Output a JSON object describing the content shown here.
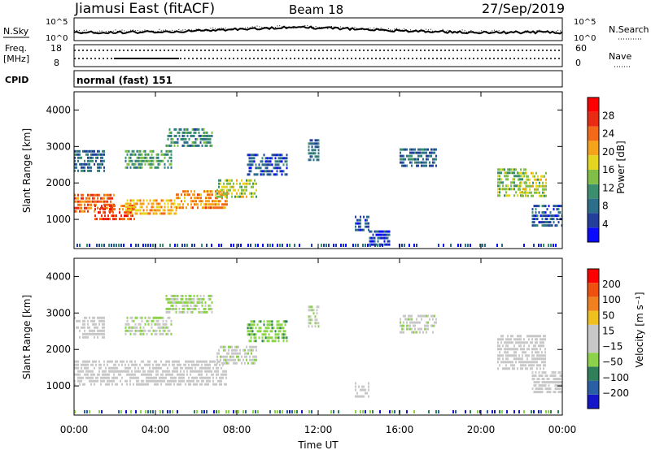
{
  "header": {
    "station": "Jiamusi East (fitACF)",
    "beam": "Beam 18",
    "date": "27/Sep/2019"
  },
  "left_labels": {
    "nsky": "N.Sky",
    "freq_line1": "Freq.",
    "freq_line2": "[MHz]",
    "cpid": "CPID"
  },
  "right_labels": {
    "nsearch": "N.Search",
    "nave": "Nave"
  },
  "noise_panel": {
    "ytick_top": "10^5",
    "ytick_bottom": "10^0",
    "right_tick_top": "10^5",
    "right_tick_bottom": "10^0"
  },
  "freq_panel": {
    "ytick_top": "18",
    "ytick_bottom": "8",
    "right_tick_top": "60",
    "right_tick_bottom": "0"
  },
  "cpid_text": "normal (fast) 151",
  "colors": {
    "power_scale": [
      "#0a0aff",
      "#233f9c",
      "#2d6e8a",
      "#3b8f6e",
      "#7fbf49",
      "#e6d51e",
      "#f5a31a",
      "#f26a17",
      "#ea2b14",
      "#ff0000"
    ],
    "velocity_scale": [
      "#1414c8",
      "#2a5fa6",
      "#2f7f5a",
      "#8cd24a",
      "#c8c8c8",
      "#c8c8c8",
      "#f0c020",
      "#f08020",
      "#ee5010",
      "#ff0000"
    ]
  },
  "chart_data": [
    {
      "type": "heatmap",
      "name": "power",
      "ylabel": "Slant Range [km]",
      "ylim": [
        200,
        4500
      ],
      "yticks": [
        "1000",
        "2000",
        "3000",
        "4000"
      ],
      "xlim_hours": [
        0,
        24
      ],
      "colorbar_label": "Power [dB]",
      "colorbar_ticks": [
        "4",
        "8",
        "12",
        "16",
        "20",
        "24",
        "28"
      ],
      "colorbar_range": [
        0,
        32
      ],
      "echo_regions": [
        {
          "t": [
            0.0,
            2.0
          ],
          "range_km": [
            1200,
            1700
          ],
          "value": 24
        },
        {
          "t": [
            1.0,
            3.0
          ],
          "range_km": [
            1000,
            1400
          ],
          "value": 26
        },
        {
          "t": [
            2.5,
            5.0
          ],
          "range_km": [
            1150,
            1550
          ],
          "value": 20
        },
        {
          "t": [
            5.0,
            7.5
          ],
          "range_km": [
            1350,
            1800
          ],
          "value": 22
        },
        {
          "t": [
            7.0,
            9.0
          ],
          "range_km": [
            1600,
            2100
          ],
          "value": 16
        },
        {
          "t": [
            2.5,
            4.8
          ],
          "range_km": [
            2450,
            2900
          ],
          "value": 12
        },
        {
          "t": [
            4.5,
            6.8
          ],
          "range_km": [
            3000,
            3500
          ],
          "value": 10
        },
        {
          "t": [
            0.0,
            1.5
          ],
          "range_km": [
            2300,
            2900
          ],
          "value": 8
        },
        {
          "t": [
            8.5,
            10.5
          ],
          "range_km": [
            2200,
            2800
          ],
          "value": 6
        },
        {
          "t": [
            11.5,
            12.0
          ],
          "range_km": [
            2600,
            3200
          ],
          "value": 8
        },
        {
          "t": [
            13.8,
            14.5
          ],
          "range_km": [
            700,
            1100
          ],
          "value": 6
        },
        {
          "t": [
            14.5,
            15.5
          ],
          "range_km": [
            300,
            700
          ],
          "value": 4
        },
        {
          "t": [
            16.0,
            17.8
          ],
          "range_km": [
            2500,
            2950
          ],
          "value": 8
        },
        {
          "t": [
            20.8,
            22.2
          ],
          "range_km": [
            1600,
            2400
          ],
          "value": 14
        },
        {
          "t": [
            21.8,
            23.2
          ],
          "range_km": [
            1600,
            2300
          ],
          "value": 16
        },
        {
          "t": [
            22.5,
            24.0
          ],
          "range_km": [
            800,
            1400
          ],
          "value": 6
        }
      ]
    },
    {
      "type": "heatmap",
      "name": "velocity",
      "ylabel": "Slant Range [km]",
      "ylim": [
        200,
        4500
      ],
      "yticks": [
        "1000",
        "2000",
        "3000",
        "4000"
      ],
      "xlim_hours": [
        0,
        24
      ],
      "xticks": [
        "00:00",
        "04:00",
        "08:00",
        "12:00",
        "16:00",
        "20:00",
        "00:00"
      ],
      "xlabel": "Time UT",
      "colorbar_label": "Velocity [m s⁻¹]",
      "colorbar_ticks": [
        "200",
        "100",
        "50",
        "15",
        "−15",
        "−50",
        "−100",
        "−200"
      ],
      "colorbar_range": [
        -250,
        250
      ],
      "echo_regions": [
        {
          "t": [
            0.0,
            7.5
          ],
          "range_km": [
            1000,
            1700
          ],
          "value": 0
        },
        {
          "t": [
            7.0,
            9.0
          ],
          "range_km": [
            1600,
            2100
          ],
          "value": -30
        },
        {
          "t": [
            2.5,
            4.8
          ],
          "range_km": [
            2450,
            2900
          ],
          "value": -40
        },
        {
          "t": [
            4.5,
            6.8
          ],
          "range_km": [
            3000,
            3500
          ],
          "value": -60
        },
        {
          "t": [
            0.0,
            1.5
          ],
          "range_km": [
            2300,
            2900
          ],
          "value": -20
        },
        {
          "t": [
            8.5,
            10.5
          ],
          "range_km": [
            2200,
            2800
          ],
          "value": -80
        },
        {
          "t": [
            11.5,
            12.0
          ],
          "range_km": [
            2600,
            3200
          ],
          "value": -40
        },
        {
          "t": [
            13.8,
            14.5
          ],
          "range_km": [
            700,
            1100
          ],
          "value": 0
        },
        {
          "t": [
            16.0,
            17.8
          ],
          "range_km": [
            2500,
            2950
          ],
          "value": -30
        },
        {
          "t": [
            20.8,
            23.2
          ],
          "range_km": [
            1500,
            2400
          ],
          "value": 0
        },
        {
          "t": [
            22.5,
            24.0
          ],
          "range_km": [
            800,
            1400
          ],
          "value": -20
        }
      ]
    }
  ]
}
